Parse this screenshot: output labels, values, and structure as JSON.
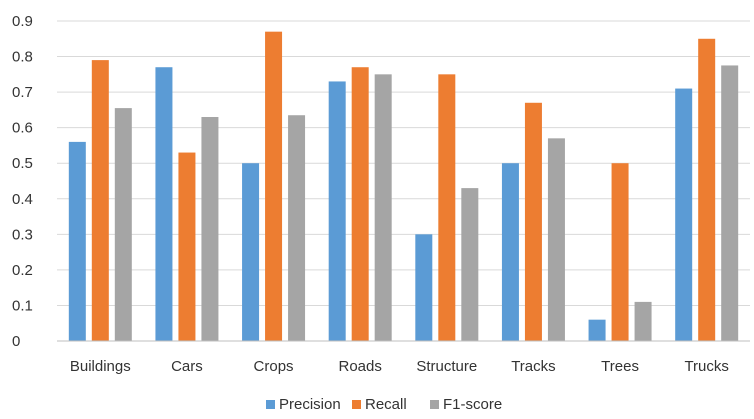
{
  "chart_data": {
    "type": "bar",
    "categories": [
      "Buildings",
      "Cars",
      "Crops",
      "Roads",
      "Structure",
      "Tracks",
      "Trees",
      "Trucks"
    ],
    "series": [
      {
        "name": "Precision",
        "color": "#5b9bd5",
        "values": [
          0.56,
          0.77,
          0.5,
          0.73,
          0.3,
          0.5,
          0.06,
          0.71
        ]
      },
      {
        "name": "Recall",
        "color": "#ed7d31",
        "values": [
          0.79,
          0.53,
          0.87,
          0.77,
          0.75,
          0.67,
          0.5,
          0.85
        ]
      },
      {
        "name": "F1-score",
        "color": "#a5a5a5",
        "values": [
          0.655,
          0.63,
          0.635,
          0.75,
          0.43,
          0.57,
          0.11,
          0.775
        ]
      }
    ],
    "yticks": [
      "0",
      "0.1",
      "0.2",
      "0.3",
      "0.4",
      "0.5",
      "0.6",
      "0.7",
      "0.8",
      "0.9"
    ],
    "ylim": [
      0,
      0.9
    ],
    "grid": true,
    "legend_position": "bottom"
  }
}
